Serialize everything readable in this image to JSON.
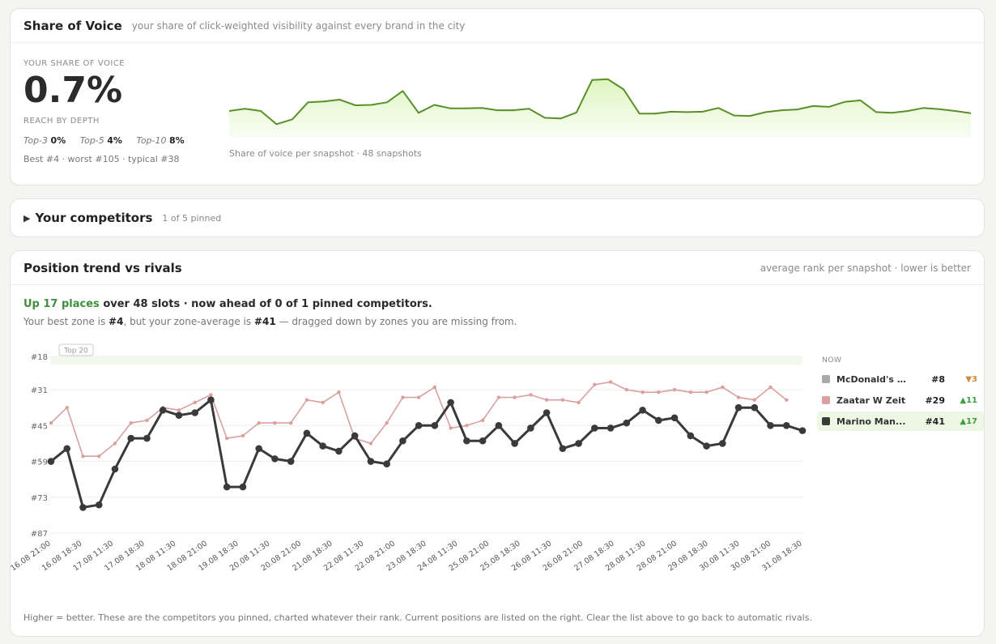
{
  "sov": {
    "title": "Share of Voice",
    "subtitle": "your share of click-weighted visibility against every brand in the city",
    "your_share_label": "YOUR SHARE OF VOICE",
    "value": "0.7%",
    "reach_label": "REACH BY DEPTH",
    "depth": [
      {
        "label": "Top-3",
        "value": "0%"
      },
      {
        "label": "Top-5",
        "value": "4%"
      },
      {
        "label": "Top-10",
        "value": "8%"
      }
    ],
    "stats": "Best #4 · worst #105 · typical #38",
    "spark_caption": "Share of voice per snapshot · 48 snapshots",
    "spark_values": [
      0.6,
      0.66,
      0.6,
      0.25,
      0.38,
      0.83,
      0.85,
      0.9,
      0.75,
      0.76,
      0.83,
      1.13,
      0.55,
      0.76,
      0.67,
      0.67,
      0.68,
      0.62,
      0.62,
      0.66,
      0.42,
      0.4,
      0.56,
      1.42,
      1.44,
      1.17,
      0.53,
      0.53,
      0.58,
      0.57,
      0.58,
      0.68,
      0.48,
      0.47,
      0.57,
      0.62,
      0.64,
      0.73,
      0.71,
      0.84,
      0.88,
      0.57,
      0.55,
      0.6,
      0.68,
      0.65,
      0.6,
      0.54
    ],
    "spark_color": "#5a8f2a"
  },
  "competitors": {
    "title": "Your competitors",
    "pinned": "1 of 5 pinned"
  },
  "trend": {
    "title": "Position trend vs rivals",
    "subtitle": "average rank per snapshot · lower is better",
    "summary_up": "Up 17 places",
    "summary_rest": " over 48 slots · now ahead of 0 of 1 pinned competitors.",
    "zone_pre": "Your best zone is ",
    "zone_best": "#4",
    "zone_mid": ", but your zone-average is ",
    "zone_avg": "#41",
    "zone_post": " — dragged down by zones you are missing from.",
    "footnote": "Higher = better. These are the competitors you pinned, charted whatever their rank. Current positions are listed on the right. Clear the list above to go back to automatic rivals.",
    "legend_header": "NOW",
    "legend": [
      {
        "name": "McDonald's · I...",
        "rank": "#8",
        "delta": "▼3",
        "dir": "down",
        "color": "#a8a8a8"
      },
      {
        "name": "Zaatar W Zeit",
        "rank": "#29",
        "delta": "▲11",
        "dir": "up",
        "color": "#d9a0a0"
      },
      {
        "name": "Marino Man...",
        "rank": "#41",
        "delta": "▲17",
        "dir": "up",
        "color": "#3a3a3a"
      }
    ]
  },
  "chart_data": {
    "type": "line",
    "ylabel": "",
    "xlabel": "",
    "y_ticks": [
      "#18",
      "#31",
      "#45",
      "#59",
      "#73",
      "#87"
    ],
    "y_tick_values": [
      18,
      31,
      45,
      59,
      73,
      87
    ],
    "ylim": [
      87,
      18
    ],
    "band_label": "Top 20",
    "x_labels": [
      "16.08 21:00",
      "16.08 18:30",
      "17.08 11:30",
      "17.08 18:30",
      "18.08 11:30",
      "18.08 21:00",
      "19.08 18:30",
      "20.08 11:30",
      "20.08 21:00",
      "21.08 18:30",
      "22.08 11:30",
      "22.08 21:00",
      "23.08 18:30",
      "24.08 11:30",
      "25.08 21:00",
      "25.08 18:30",
      "26.08 11:30",
      "26.08 21:00",
      "27.08 18:30",
      "28.08 11:30",
      "28.08 21:00",
      "29.08 18:30",
      "30.08 11:30",
      "30.08 21:00",
      "31.08 18:30"
    ],
    "series": [
      {
        "name": "Zaatar W Zeit",
        "color": "#d9a0a0",
        "values": [
          44,
          38,
          57,
          57,
          52,
          44,
          43,
          38,
          39,
          36,
          33,
          50,
          49,
          44,
          44,
          44,
          35,
          36,
          32,
          50,
          52,
          44,
          34,
          34,
          30,
          46,
          45,
          43,
          34,
          34,
          33,
          35,
          35,
          36,
          29,
          28,
          31,
          32,
          32,
          31,
          32,
          32,
          30,
          34,
          35,
          30,
          35,
          null
        ]
      },
      {
        "name": "Marino Man...",
        "color": "#3a3a3a",
        "values": [
          59,
          54,
          77,
          76,
          62,
          50,
          50,
          39,
          41,
          40,
          35,
          69,
          69,
          54,
          58,
          59,
          48,
          53,
          55,
          49,
          59,
          60,
          51,
          45,
          45,
          36,
          51,
          51,
          45,
          52,
          46,
          40,
          54,
          52,
          46,
          46,
          44,
          39,
          43,
          42,
          49,
          53,
          52,
          38,
          38,
          45,
          45,
          47
        ]
      }
    ]
  }
}
